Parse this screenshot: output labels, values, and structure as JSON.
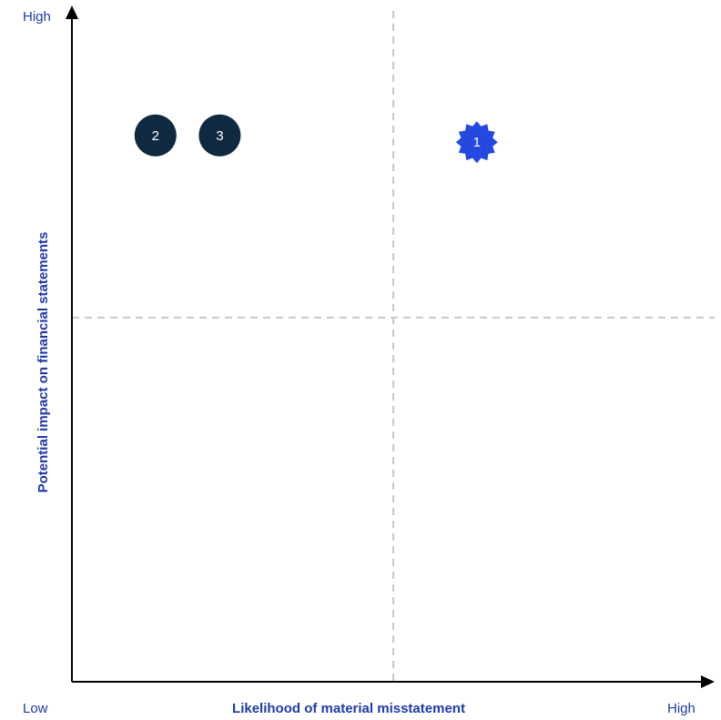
{
  "chart_data": {
    "type": "scatter",
    "xlabel": "Likelihood of material misstatement",
    "ylabel": "Potential impact on financial statements",
    "x_low_label": "Low",
    "x_high_label": "High",
    "y_high_label": "High",
    "xlim": [
      0,
      1
    ],
    "ylim": [
      0,
      1
    ],
    "quadrant_split": {
      "x": 0.5,
      "y": 0.54
    },
    "grid": false,
    "points": [
      {
        "label": "1",
        "x": 0.63,
        "y": 0.8,
        "shape": "starburst",
        "color": "#2448e0"
      },
      {
        "label": "2",
        "x": 0.13,
        "y": 0.81,
        "shape": "circle",
        "color": "#0f2a40"
      },
      {
        "label": "3",
        "x": 0.23,
        "y": 0.81,
        "shape": "circle",
        "color": "#0f2a40"
      }
    ]
  },
  "colors": {
    "axis": "#000000",
    "text": "#1f3aa8",
    "guide": "#c8c8c8"
  }
}
